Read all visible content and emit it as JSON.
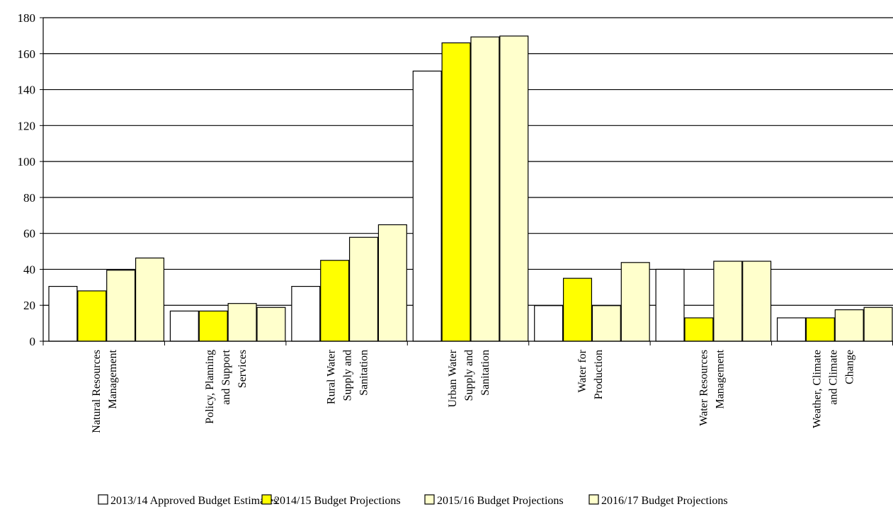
{
  "chart_data": {
    "type": "bar",
    "title": "",
    "xlabel": "",
    "ylabel": "",
    "ylim": [
      0,
      180
    ],
    "yticks": [
      0,
      20,
      40,
      60,
      80,
      100,
      120,
      140,
      160,
      180
    ],
    "grid": "horizontal",
    "legend_position": "bottom",
    "categories": [
      [
        "Natural Resources",
        "Management"
      ],
      [
        "Policy, Planning",
        "and Support",
        "Services"
      ],
      [
        "Rural Water",
        "Supply and",
        "Sanitation"
      ],
      [
        "Urban Water",
        "Supply and",
        "Sanitation"
      ],
      [
        "Water for",
        "Production"
      ],
      [
        "Water Resources",
        "Management"
      ],
      [
        "Weather, Climate",
        "and Climate",
        "Change"
      ]
    ],
    "series": [
      {
        "name": "2013/14 Approved Budget Estimates",
        "color": "#FFFFFF",
        "values": [
          30.5,
          16.8,
          30.5,
          150.3,
          19.8,
          40.0,
          13.0
        ]
      },
      {
        "name": "2014/15 Budget Projections",
        "color": "#FFFF00",
        "values": [
          28.0,
          16.8,
          45.0,
          166.0,
          35.0,
          13.0,
          13.0
        ]
      },
      {
        "name": "2015/16 Budget Projections",
        "color": "#FFFFCC",
        "values": [
          39.5,
          21.0,
          57.8,
          169.3,
          19.8,
          44.5,
          17.5
        ]
      },
      {
        "name": "2016/17 Budget Projections",
        "color": "#FFFFCC",
        "values": [
          46.3,
          18.8,
          64.8,
          169.8,
          43.8,
          44.5,
          18.8
        ]
      }
    ]
  }
}
